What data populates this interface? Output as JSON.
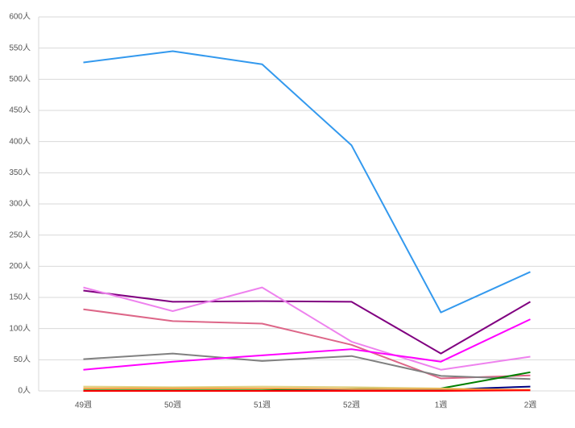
{
  "chart_data": {
    "type": "line",
    "categories": [
      "49週",
      "50週",
      "51週",
      "52週",
      "1週",
      "2週"
    ],
    "ylim": [
      0,
      600
    ],
    "yticks": [
      {
        "value": 0,
        "label": "0人"
      },
      {
        "value": 50,
        "label": "50人"
      },
      {
        "value": 100,
        "label": "100人"
      },
      {
        "value": 150,
        "label": "150人"
      },
      {
        "value": 200,
        "label": "200人"
      },
      {
        "value": 250,
        "label": "250人"
      },
      {
        "value": 300,
        "label": "300人"
      },
      {
        "value": 350,
        "label": "350人"
      },
      {
        "value": 400,
        "label": "400人"
      },
      {
        "value": 450,
        "label": "450人"
      },
      {
        "value": 500,
        "label": "500人"
      },
      {
        "value": 550,
        "label": "550人"
      },
      {
        "value": 600,
        "label": "600人"
      }
    ],
    "grid": true,
    "series": [
      {
        "color": "#3399ee",
        "values": [
          527,
          545,
          524,
          394,
          126,
          191
        ]
      },
      {
        "color": "#800080",
        "values": [
          161,
          143,
          144,
          143,
          60,
          143
        ]
      },
      {
        "color": "#ee82ee",
        "values": [
          166,
          128,
          166,
          79,
          34,
          55
        ]
      },
      {
        "color": "#dd6688",
        "values": [
          131,
          112,
          108,
          74,
          20,
          25
        ]
      },
      {
        "color": "#808080",
        "values": [
          51,
          60,
          48,
          56,
          24,
          19
        ]
      },
      {
        "color": "#ff00ff",
        "values": [
          34,
          47,
          57,
          67,
          47,
          115
        ]
      },
      {
        "color": "#008000",
        "values": [
          1,
          1,
          1,
          3,
          4,
          30
        ]
      },
      {
        "color": "#000080",
        "values": [
          0,
          0,
          0,
          1,
          2,
          7
        ]
      },
      {
        "color": "#e0d080",
        "values": [
          7,
          6,
          7,
          6,
          4,
          1
        ]
      },
      {
        "color": "#f0a040",
        "values": [
          4,
          4,
          4,
          3,
          3,
          2
        ]
      },
      {
        "color": "#ff0000",
        "values": [
          0,
          0,
          0,
          0,
          0,
          1
        ]
      }
    ]
  }
}
